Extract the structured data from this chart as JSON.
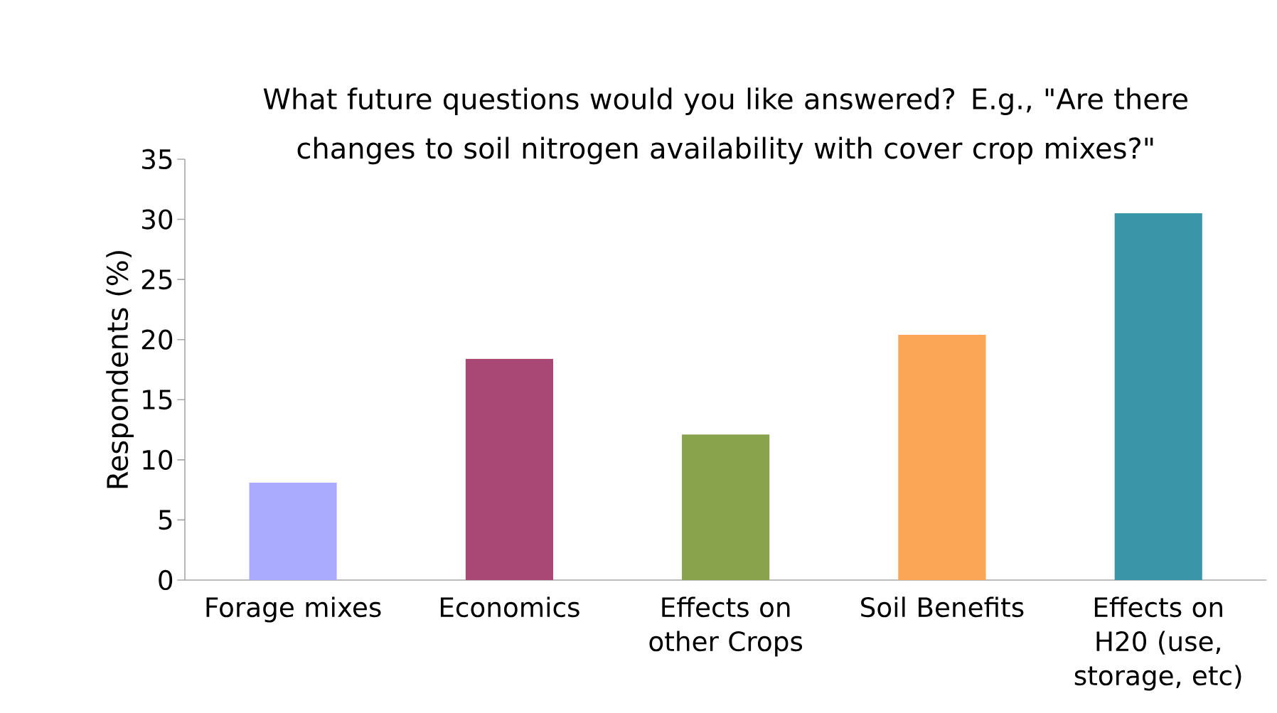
{
  "chart_data": {
    "type": "bar",
    "title": "What future questions would you like answered?  E.g., \"Are there changes to soil nitrogen availability with cover crop mixes?\"",
    "ylabel": "Respondents (%)",
    "categories": [
      "Forage mixes",
      "Economics",
      "Effects on other Crops",
      "Soil Benefits",
      "Effects on H20 (use, storage, etc)"
    ],
    "values": [
      8.1,
      18.4,
      12.1,
      20.4,
      30.5
    ],
    "colors": [
      "#aaaaff",
      "#a94775",
      "#89a24c",
      "#fba656",
      "#3b95a9"
    ],
    "ylim": [
      0,
      35
    ],
    "yticks": [
      0,
      5,
      10,
      15,
      20,
      25,
      30,
      35
    ],
    "grid": false
  }
}
